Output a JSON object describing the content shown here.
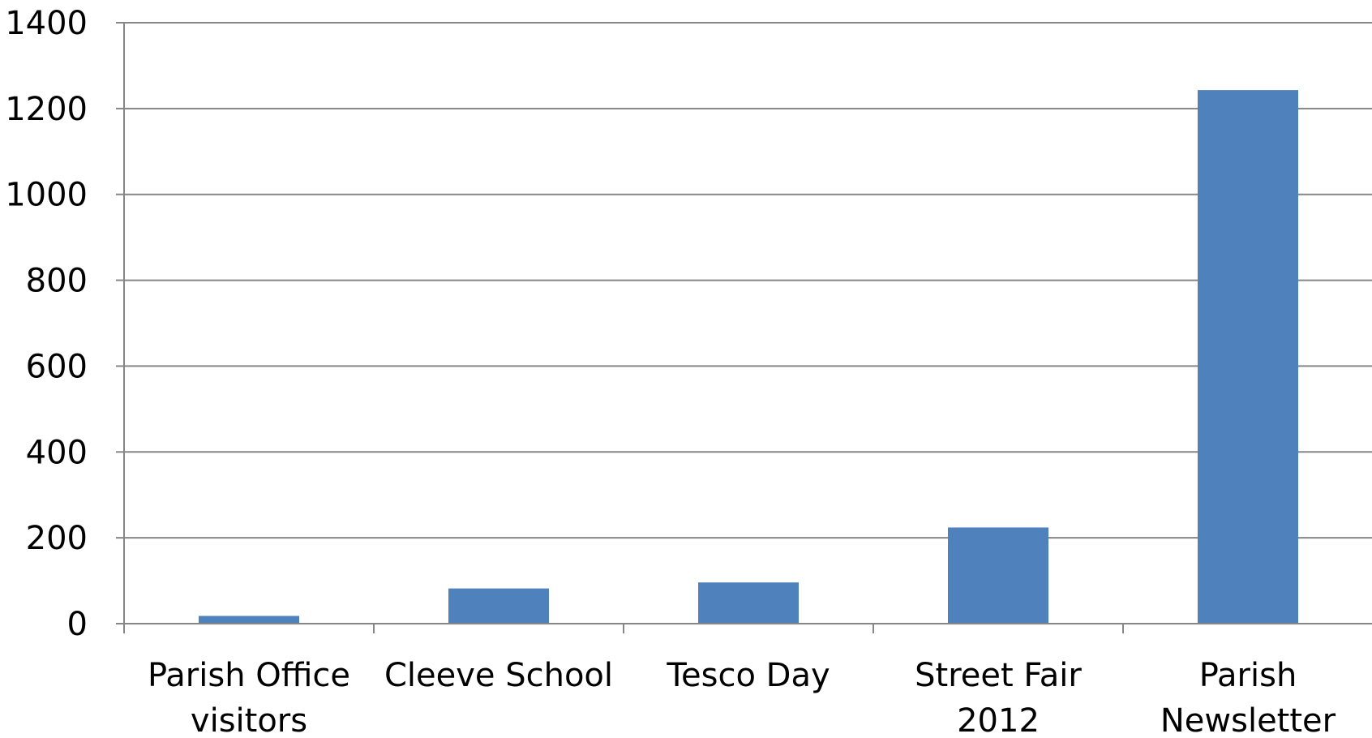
{
  "chart_data": {
    "type": "bar",
    "categories": [
      [
        "Parish Office",
        "visitors"
      ],
      [
        "Cleeve School"
      ],
      [
        "Tesco Day"
      ],
      [
        "Street Fair",
        "2012"
      ],
      [
        "Parish",
        "Newsletter"
      ]
    ],
    "values": [
      18,
      82,
      96,
      224,
      1243
    ],
    "ylim": [
      0,
      1400
    ],
    "yticks": [
      "0",
      "200",
      "400",
      "600",
      "800",
      "1000",
      "1200",
      "1400"
    ],
    "ytick_values": [
      0,
      200,
      400,
      600,
      800,
      1000,
      1200,
      1400
    ],
    "grid": true,
    "legend": "none",
    "colors": {
      "bar": "#4f81bd",
      "grid": "#868686",
      "axis": "#868686",
      "text": "#000000"
    }
  }
}
